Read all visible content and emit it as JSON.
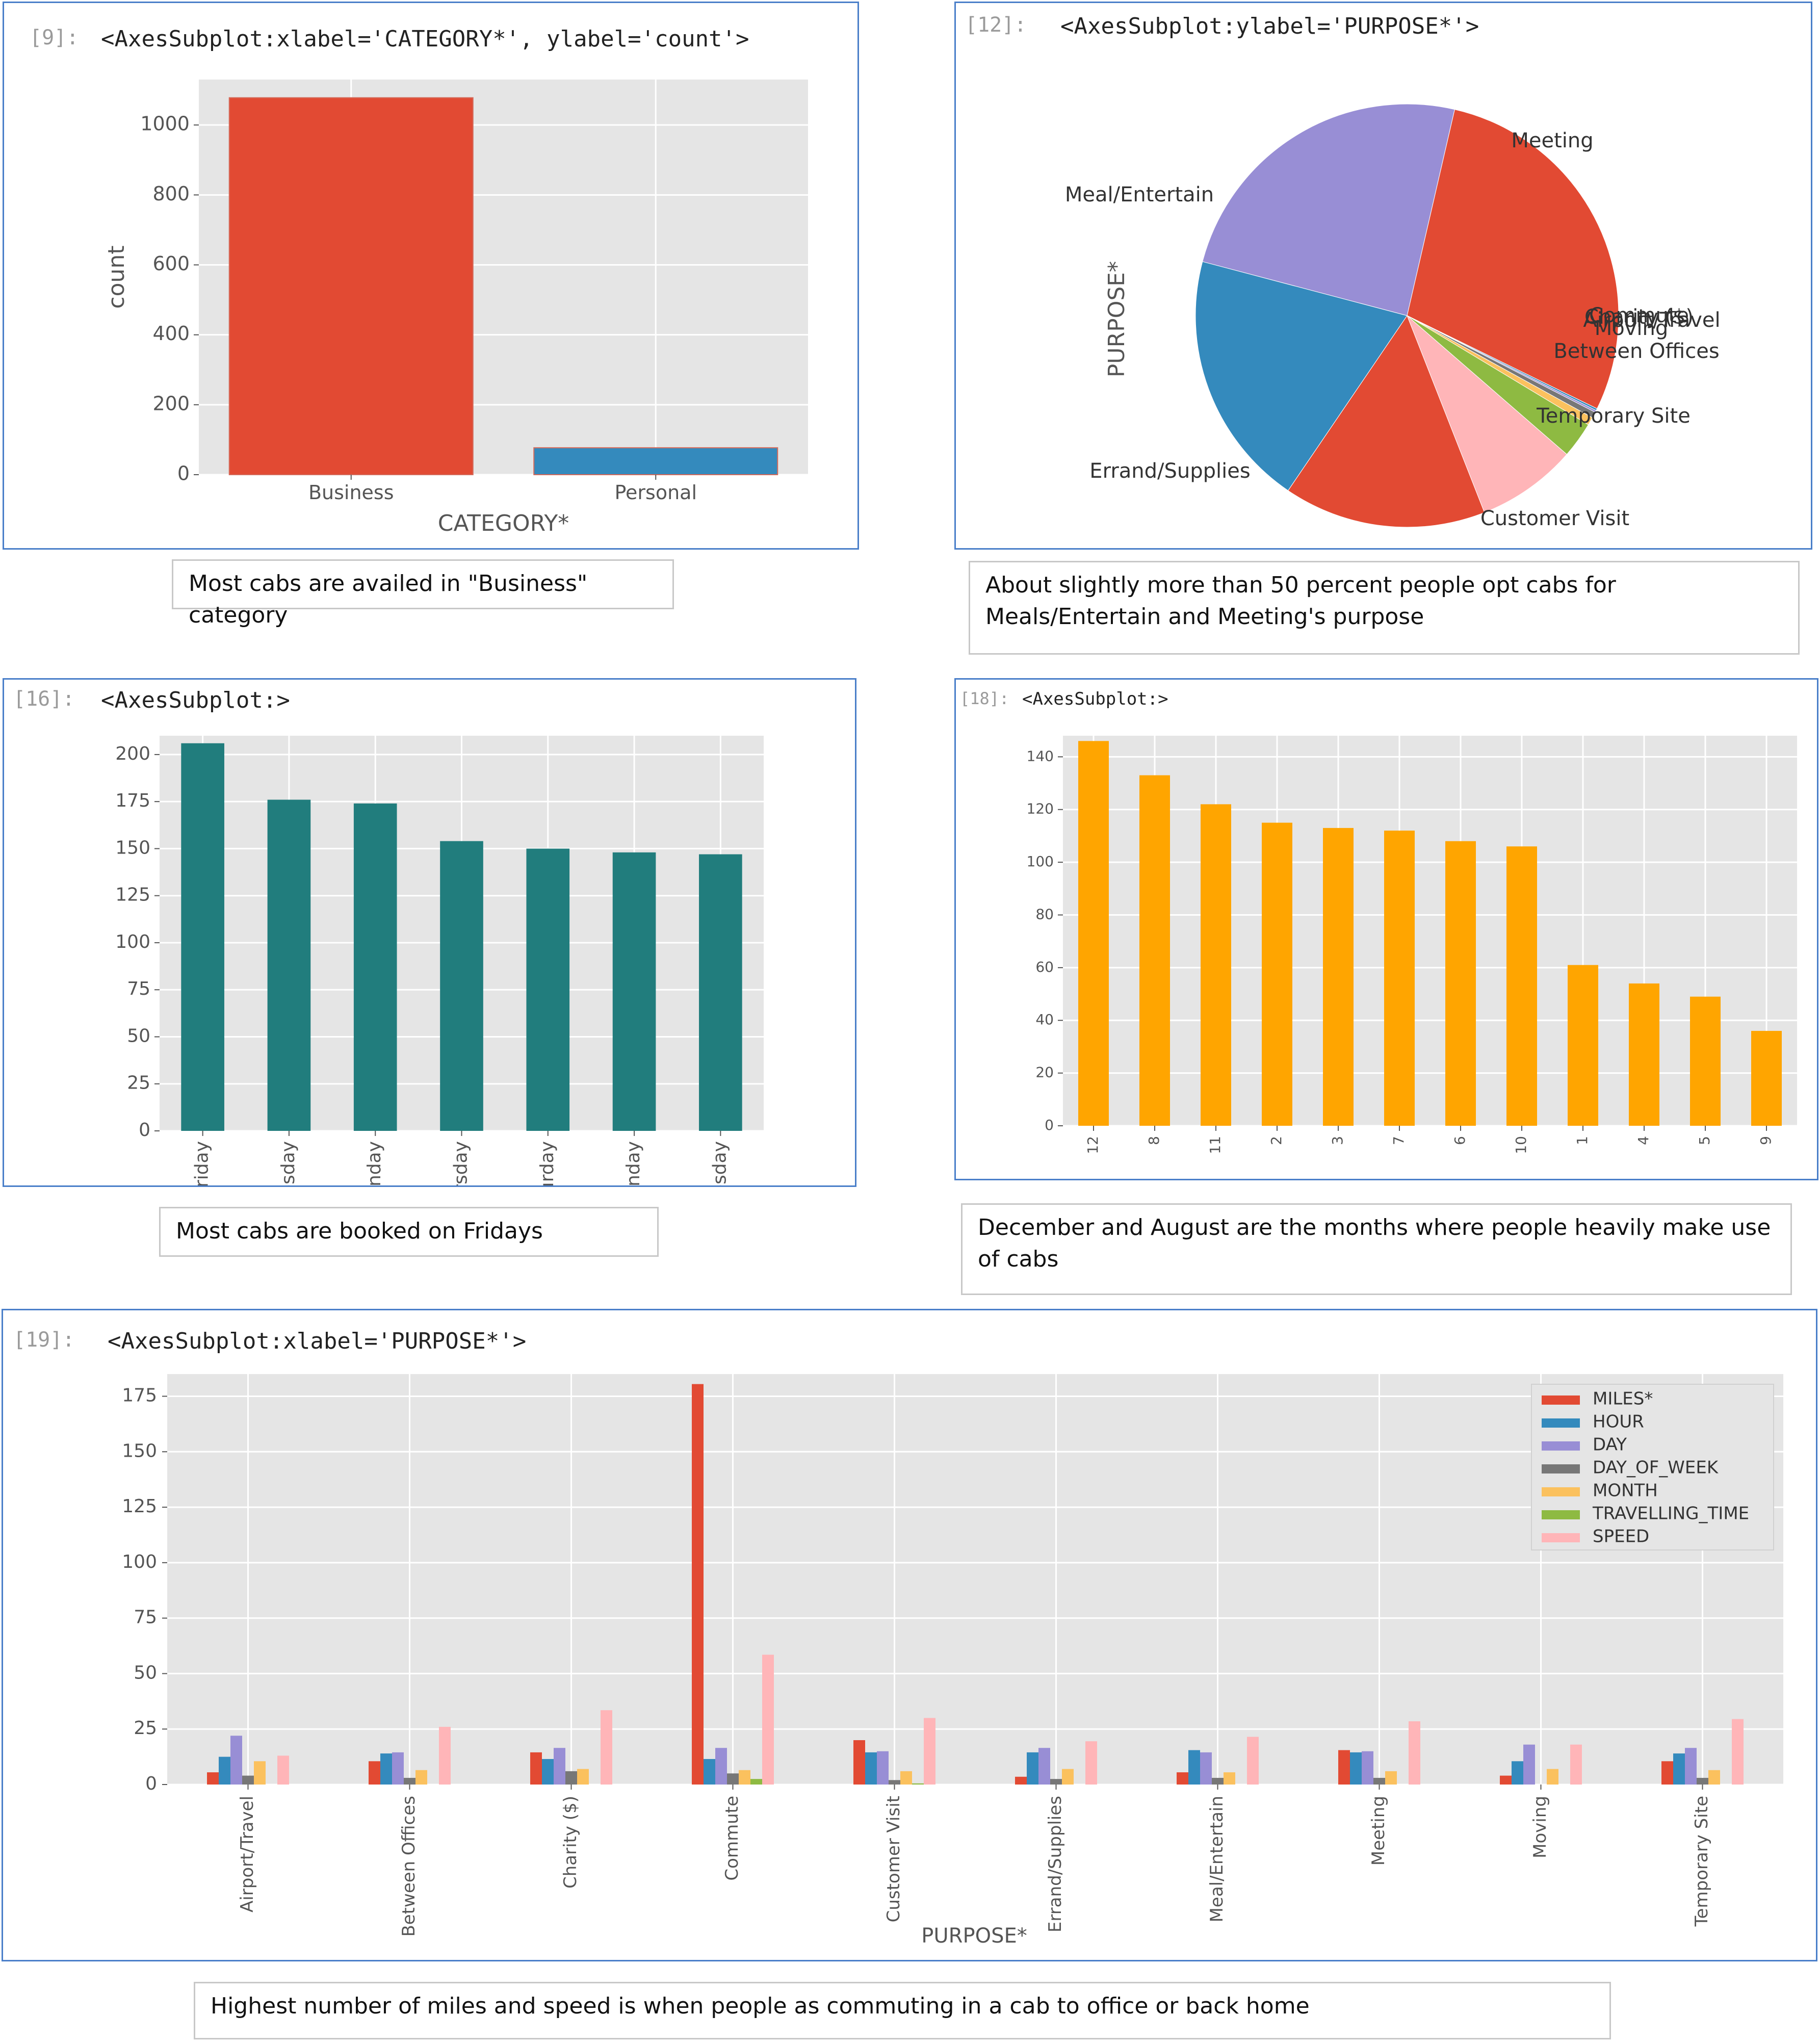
{
  "cells": [
    {
      "prompt": "[9]:",
      "outline": "<AxesSubplot:xlabel='CATEGORY*', ylabel='count'>",
      "note": "Most cabs are availed in \"Business\" category"
    },
    {
      "prompt": "[12]:",
      "outline": "<AxesSubplot:ylabel='PURPOSE*'>",
      "note": "About slightly more than 50 percent people opt cabs for Meals/Entertain and Meeting's purpose"
    },
    {
      "prompt": "[16]:",
      "outline": "<AxesSubplot:>",
      "note": "Most cabs are booked on Fridays"
    },
    {
      "prompt": "[18]:",
      "outline": "<AxesSubplot:>",
      "note": "December and August are the months where people heavily make use of cabs"
    },
    {
      "prompt": "[19]:",
      "outline": "<AxesSubplot:xlabel='PURPOSE*'>",
      "note": "Highest number of miles and speed is when people as commuting in a cab to office or back home"
    }
  ],
  "colors": {
    "red": "#e24a33",
    "blue": "#348abd",
    "purple": "#988ed5",
    "gray": "#777777",
    "yellow": "#fbc15e",
    "green": "#8eba42",
    "pink": "#ffb5b8",
    "teal": "#217d7d",
    "orange": "#ffa500",
    "axes_bg": "#e5e5e5"
  },
  "chart_data": [
    {
      "type": "bar",
      "categories": [
        "Business",
        "Personal"
      ],
      "values": [
        1078,
        77
      ],
      "xlabel": "CATEGORY*",
      "ylabel": "count",
      "ylim": [
        0,
        1130
      ],
      "yticks": [
        0,
        200,
        400,
        600,
        800,
        1000
      ],
      "colors": [
        "#e24a33",
        "#348abd"
      ],
      "grid": true
    },
    {
      "type": "pie",
      "ylabel": "PURPOSE*",
      "labels": [
        "Meeting",
        "Commute",
        "Charity ($)",
        "Airport/Travel",
        "Moving",
        "Between Offices",
        "Temporary Site",
        "Customer Visit",
        "Errand/Supplies",
        "Meal/Entertain"
      ],
      "values": [
        187,
        1,
        1,
        3,
        4,
        18,
        50,
        101,
        128,
        160
      ],
      "colors": [
        "#e24a33",
        "#348abd",
        "#988ed5",
        "#777777",
        "#fbc15e",
        "#8eba42",
        "#ffb5b8",
        "#e24a33",
        "#348abd",
        "#988ed5"
      ]
    },
    {
      "type": "bar",
      "categories": [
        "Friday",
        "Tuesday",
        "Monday",
        "Thursday",
        "Saturday",
        "Sunday",
        "Wednesday"
      ],
      "values": [
        206,
        176,
        174,
        154,
        150,
        148,
        147
      ],
      "ylim": [
        0,
        210
      ],
      "yticks": [
        0,
        25,
        50,
        75,
        100,
        125,
        150,
        175,
        200
      ],
      "color": "#217d7d",
      "grid": true
    },
    {
      "type": "bar",
      "categories": [
        "12",
        "8",
        "11",
        "2",
        "3",
        "7",
        "6",
        "10",
        "1",
        "4",
        "5",
        "9"
      ],
      "values": [
        146,
        133,
        122,
        115,
        113,
        112,
        108,
        106,
        61,
        54,
        49,
        36
      ],
      "ylim": [
        0,
        148
      ],
      "yticks": [
        0,
        20,
        40,
        60,
        80,
        100,
        120,
        140
      ],
      "color": "#ffa500",
      "grid": true
    },
    {
      "type": "bar",
      "xlabel": "PURPOSE*",
      "ylim": [
        0,
        185
      ],
      "yticks": [
        0,
        25,
        50,
        75,
        100,
        125,
        150,
        175
      ],
      "grid": true,
      "legend": "top-right",
      "categories": [
        "Airport/Travel",
        "Between Offices",
        "Charity ($)",
        "Commute",
        "Customer Visit",
        "Errand/Supplies",
        "Meal/Entertain",
        "Meeting",
        "Moving",
        "Temporary Site"
      ],
      "series": [
        {
          "name": "MILES*",
          "color": "#e24a33",
          "values": [
            5.5,
            10.5,
            14.5,
            180.5,
            20,
            3.5,
            5.5,
            15.5,
            4,
            10.5
          ]
        },
        {
          "name": "HOUR",
          "color": "#348abd",
          "values": [
            12.5,
            14,
            11.5,
            11.5,
            14.5,
            14.5,
            15.5,
            14.5,
            10.5,
            14
          ]
        },
        {
          "name": "DAY",
          "color": "#988ed5",
          "values": [
            22,
            14.5,
            16.5,
            16.5,
            15,
            16.5,
            14.5,
            15,
            18,
            16.5
          ]
        },
        {
          "name": "DAY_OF_WEEK",
          "color": "#777777",
          "values": [
            4,
            3,
            6,
            5,
            2,
            2.5,
            3,
            3,
            0,
            3
          ]
        },
        {
          "name": "MONTH",
          "color": "#fbc15e",
          "values": [
            10.5,
            6.5,
            7,
            6.5,
            6,
            7,
            5.5,
            6,
            7,
            6.5
          ]
        },
        {
          "name": "TRAVELLING_TIME",
          "color": "#8eba42",
          "values": [
            0,
            0,
            0,
            2.5,
            0.5,
            0,
            0,
            0,
            0,
            0
          ]
        },
        {
          "name": "SPEED",
          "color": "#ffb5b8",
          "values": [
            13,
            26,
            33.5,
            58.5,
            30,
            19.5,
            21.5,
            28.5,
            18,
            29.5
          ]
        }
      ]
    }
  ]
}
